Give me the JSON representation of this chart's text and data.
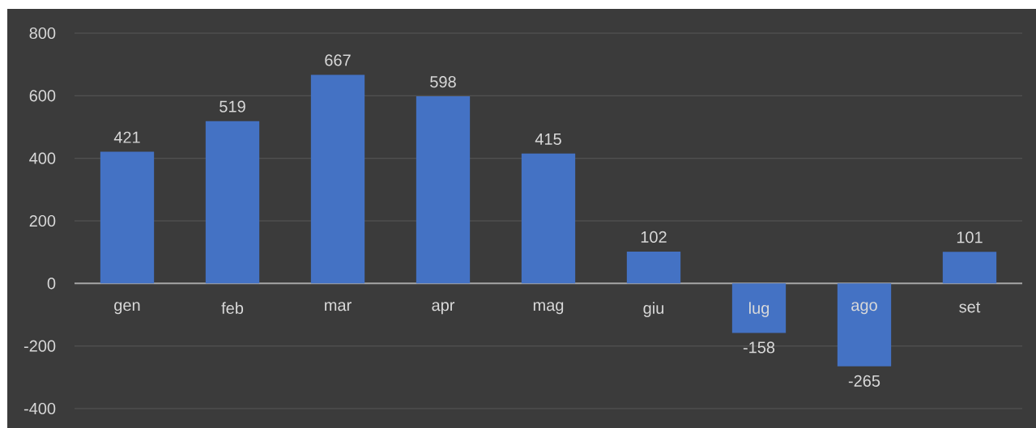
{
  "chart_data": {
    "type": "bar",
    "categories": [
      "gen",
      "feb",
      "mar",
      "apr",
      "mag",
      "giu",
      "lug",
      "ago",
      "set"
    ],
    "values": [
      421,
      519,
      667,
      598,
      415,
      102,
      -158,
      -265,
      101
    ],
    "color": "#4472c4",
    "ylim": [
      -400,
      800
    ],
    "yticks": [
      -400,
      -200,
      0,
      200,
      400,
      600,
      800
    ],
    "grid": "y",
    "data_labels": true
  }
}
